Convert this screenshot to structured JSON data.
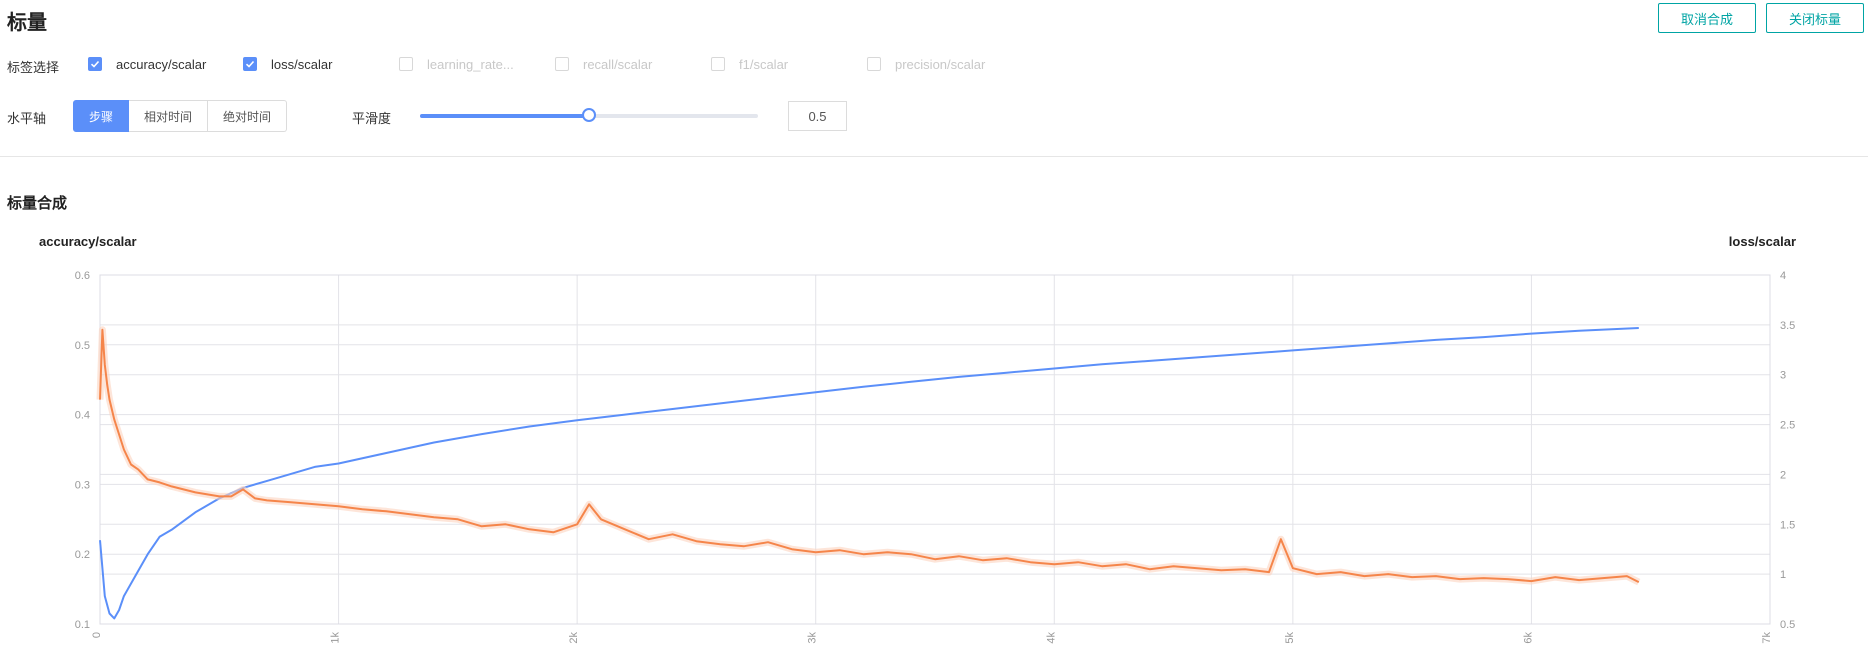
{
  "page": {
    "title": "标量",
    "buttons": {
      "cancel": "取消合成",
      "close": "关闭标量"
    }
  },
  "tag_filter": {
    "label": "标签选择",
    "tags": [
      {
        "name": "accuracy/scalar",
        "checked": true
      },
      {
        "name": "loss/scalar",
        "checked": true
      },
      {
        "name": "learning_rate...",
        "checked": false
      },
      {
        "name": "recall/scalar",
        "checked": false
      },
      {
        "name": "f1/scalar",
        "checked": false
      },
      {
        "name": "precision/scalar",
        "checked": false
      }
    ]
  },
  "x_axis": {
    "label": "水平轴",
    "options": [
      "步骤",
      "相对时间",
      "绝对时间"
    ],
    "selected": "步骤"
  },
  "smoothing": {
    "label": "平滑度",
    "value": 0.5,
    "display": "0.5",
    "min": 0,
    "max": 1
  },
  "section": {
    "title": "标量合成"
  },
  "colors": {
    "accent": "#5b8ff9",
    "accuracy_line": "#5b8ff9",
    "loss_line": "#f5854a",
    "loss_raw": "#fbd3bf",
    "button_teal": "#00a4a4"
  },
  "chart_data": {
    "type": "line",
    "x_ticks": [
      "0",
      "1k",
      "2k",
      "3k",
      "4k",
      "5k",
      "6k",
      "7k"
    ],
    "xlim": [
      0,
      7000
    ],
    "y_left": {
      "label": "accuracy/scalar",
      "ylim": [
        0.1,
        0.6
      ],
      "ticks": [
        "0.1",
        "0.2",
        "0.3",
        "0.4",
        "0.5",
        "0.6"
      ]
    },
    "y_right": {
      "label": "loss/scalar",
      "ylim": [
        0.5,
        4
      ],
      "ticks": [
        "0.5",
        "1",
        "1.5",
        "2",
        "2.5",
        "3",
        "3.5",
        "4"
      ]
    },
    "grid": true,
    "series": [
      {
        "name": "accuracy/scalar",
        "axis": "left",
        "x": [
          0,
          20,
          40,
          60,
          80,
          100,
          150,
          200,
          250,
          300,
          400,
          500,
          600,
          700,
          800,
          900,
          1000,
          1200,
          1400,
          1600,
          1800,
          2000,
          2200,
          2400,
          2600,
          2800,
          3000,
          3200,
          3400,
          3600,
          3800,
          4000,
          4200,
          4400,
          4600,
          4800,
          5000,
          5200,
          5400,
          5600,
          5800,
          6000,
          6200,
          6450
        ],
        "values": [
          0.22,
          0.14,
          0.115,
          0.108,
          0.12,
          0.14,
          0.17,
          0.2,
          0.225,
          0.235,
          0.26,
          0.28,
          0.295,
          0.305,
          0.315,
          0.325,
          0.33,
          0.345,
          0.36,
          0.372,
          0.383,
          0.392,
          0.4,
          0.408,
          0.416,
          0.424,
          0.432,
          0.44,
          0.447,
          0.454,
          0.46,
          0.466,
          0.472,
          0.477,
          0.482,
          0.487,
          0.492,
          0.497,
          0.502,
          0.507,
          0.511,
          0.516,
          0.52,
          0.524
        ]
      },
      {
        "name": "loss/scalar",
        "axis": "right",
        "x": [
          0,
          10,
          20,
          30,
          40,
          60,
          80,
          100,
          130,
          160,
          200,
          250,
          300,
          350,
          400,
          450,
          500,
          550,
          600,
          650,
          700,
          800,
          900,
          1000,
          1100,
          1200,
          1300,
          1400,
          1500,
          1600,
          1700,
          1800,
          1900,
          2000,
          2050,
          2100,
          2200,
          2300,
          2400,
          2500,
          2600,
          2700,
          2800,
          2900,
          3000,
          3100,
          3200,
          3300,
          3400,
          3500,
          3600,
          3700,
          3800,
          3900,
          4000,
          4100,
          4200,
          4300,
          4400,
          4500,
          4600,
          4700,
          4800,
          4900,
          4950,
          5000,
          5100,
          5200,
          5300,
          5400,
          5500,
          5600,
          5700,
          5800,
          5900,
          6000,
          6100,
          6200,
          6300,
          6400,
          6450
        ],
        "values": [
          2.75,
          3.45,
          3.1,
          2.9,
          2.75,
          2.55,
          2.4,
          2.25,
          2.1,
          2.05,
          1.95,
          1.92,
          1.88,
          1.85,
          1.82,
          1.8,
          1.78,
          1.78,
          1.85,
          1.76,
          1.74,
          1.72,
          1.7,
          1.68,
          1.65,
          1.63,
          1.6,
          1.57,
          1.55,
          1.48,
          1.5,
          1.45,
          1.42,
          1.5,
          1.7,
          1.55,
          1.45,
          1.35,
          1.4,
          1.33,
          1.3,
          1.28,
          1.32,
          1.25,
          1.22,
          1.24,
          1.2,
          1.22,
          1.2,
          1.15,
          1.18,
          1.14,
          1.16,
          1.12,
          1.1,
          1.12,
          1.08,
          1.1,
          1.05,
          1.08,
          1.06,
          1.04,
          1.05,
          1.02,
          1.35,
          1.06,
          1.0,
          1.02,
          0.98,
          1.0,
          0.97,
          0.98,
          0.95,
          0.96,
          0.95,
          0.93,
          0.97,
          0.94,
          0.96,
          0.98,
          0.92
        ]
      }
    ]
  }
}
